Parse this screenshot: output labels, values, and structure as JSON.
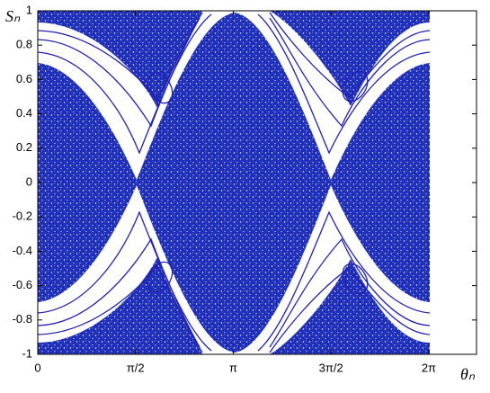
{
  "chart_data": {
    "type": "scatter",
    "xlabel": "θₙ",
    "ylabel": "Sₙ",
    "xlim": [
      0,
      7.05
    ],
    "ylim": [
      -1,
      1
    ],
    "xticks": [
      0,
      {
        "value": 1.5708,
        "label": "π/2"
      },
      {
        "value": 3.1416,
        "label": "π"
      },
      {
        "value": 4.7124,
        "label": "3π/2"
      },
      {
        "value": 6.2832,
        "label": "2π"
      }
    ],
    "yticks": [
      -1,
      -0.8,
      -0.6,
      -0.4,
      -0.2,
      0,
      0.2,
      0.4,
      0.6,
      0.8,
      1
    ]
  }
}
